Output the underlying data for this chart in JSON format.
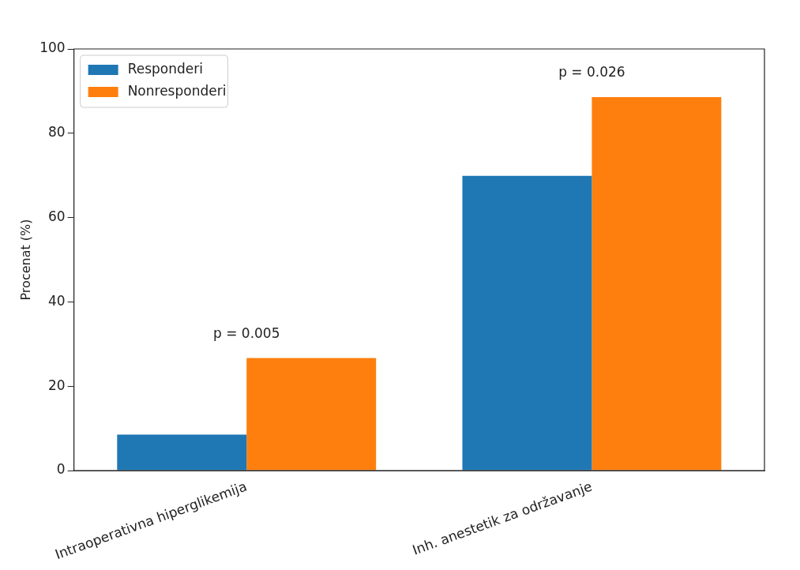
{
  "chart_data": {
    "type": "bar",
    "ylabel": "Procenat (%)",
    "categories": [
      "Intraoperativna hiperglikemija",
      "Inh. anestetik za održavanje"
    ],
    "series": [
      {
        "name": "Responderi",
        "color": "#1f77b4",
        "values": [
          8.5,
          69.9
        ]
      },
      {
        "name": "Nonresponderi",
        "color": "#ff7f0e",
        "values": [
          26.7,
          88.6
        ]
      }
    ],
    "ylim": [
      0,
      100
    ],
    "yticks": [
      0,
      20,
      40,
      60,
      80,
      100
    ],
    "grid": false,
    "legend": "top left",
    "annotations": [
      "p = 0.005",
      "p = 0.026"
    ]
  }
}
